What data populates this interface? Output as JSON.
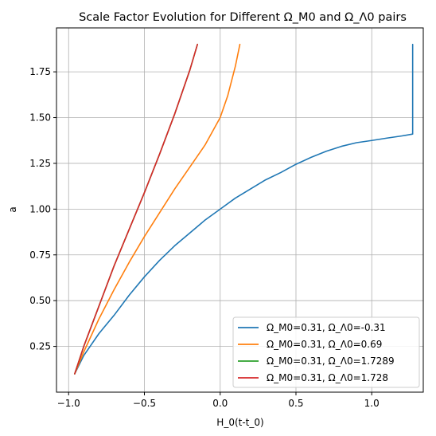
{
  "chart_data": {
    "type": "line",
    "title": "Scale Factor Evolution for Different Ω_M0 and Ω_Λ0 pairs",
    "xlabel": "H_0(t-t_0)",
    "ylabel": "a",
    "xlim": [
      -1.08,
      1.34
    ],
    "ylim": [
      0.0,
      1.99
    ],
    "xticks": [
      -1.0,
      -0.5,
      0.0,
      0.5,
      1.0
    ],
    "xtick_labels": [
      "−1.0",
      "−0.5",
      "0.0",
      "0.5",
      "1.0"
    ],
    "yticks": [
      0.25,
      0.5,
      0.75,
      1.0,
      1.25,
      1.5,
      1.75
    ],
    "ytick_labels": [
      "0.25",
      "0.50",
      "0.75",
      "1.00",
      "1.25",
      "1.50",
      "1.75"
    ],
    "grid": true,
    "legend_position": "lower-right",
    "series": [
      {
        "name": "Ω_M0=0.31, Ω_Λ0=-0.31",
        "color": "#1f77b4",
        "x": [
          -0.96,
          -0.9,
          -0.8,
          -0.7,
          -0.6,
          -0.5,
          -0.4,
          -0.3,
          -0.2,
          -0.1,
          0.0,
          0.1,
          0.2,
          0.3,
          0.4,
          0.5,
          0.6,
          0.7,
          0.8,
          0.9,
          1.0,
          1.1,
          1.2,
          1.27,
          1.27,
          1.27
        ],
        "y": [
          0.1,
          0.2,
          0.32,
          0.42,
          0.53,
          0.63,
          0.72,
          0.8,
          0.87,
          0.94,
          1.0,
          1.06,
          1.11,
          1.16,
          1.2,
          1.245,
          1.283,
          1.316,
          1.343,
          1.363,
          1.375,
          1.388,
          1.4,
          1.41,
          1.41,
          1.9
        ]
      },
      {
        "name": "Ω_M0=0.31, Ω_Λ0=0.69",
        "color": "#ff7f0e",
        "x": [
          -0.96,
          -0.9,
          -0.8,
          -0.7,
          -0.6,
          -0.5,
          -0.4,
          -0.3,
          -0.2,
          -0.1,
          0.0,
          0.05,
          0.1,
          0.13
        ],
        "y": [
          0.1,
          0.22,
          0.4,
          0.56,
          0.71,
          0.85,
          0.98,
          1.11,
          1.23,
          1.35,
          1.5,
          1.62,
          1.78,
          1.9
        ]
      },
      {
        "name": "Ω_M0=0.31, Ω_Λ0=1.7289",
        "color": "#2ca02c",
        "x": [
          -0.96,
          -0.9,
          -0.8,
          -0.7,
          -0.6,
          -0.5,
          -0.4,
          -0.3,
          -0.2,
          -0.15
        ],
        "y": [
          0.1,
          0.25,
          0.47,
          0.69,
          0.89,
          1.09,
          1.3,
          1.52,
          1.76,
          1.9
        ]
      },
      {
        "name": "Ω_M0=0.31, Ω_Λ0=1.728",
        "color": "#d62728",
        "x": [
          -0.96,
          -0.9,
          -0.8,
          -0.7,
          -0.6,
          -0.5,
          -0.4,
          -0.3,
          -0.2,
          -0.15
        ],
        "y": [
          0.1,
          0.25,
          0.47,
          0.69,
          0.89,
          1.09,
          1.3,
          1.52,
          1.76,
          1.9
        ]
      }
    ]
  }
}
